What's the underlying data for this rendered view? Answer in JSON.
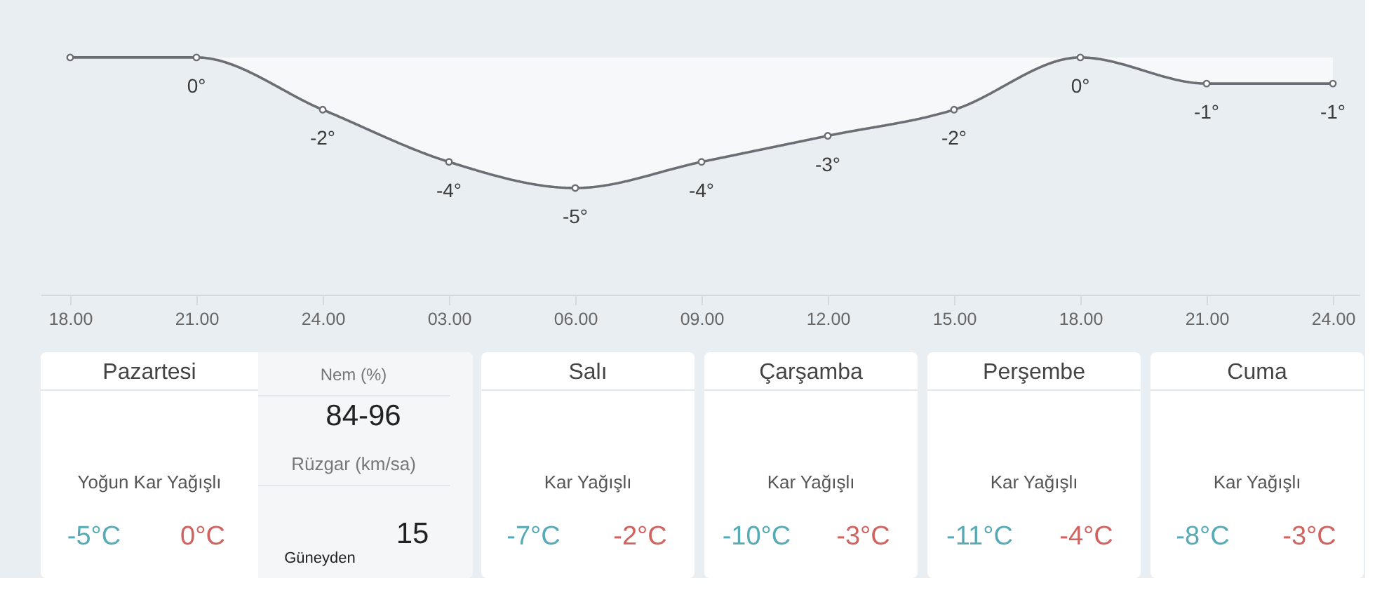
{
  "chart_data": [
    {
      "type": "area",
      "categories": [
        "18.00",
        "21.00",
        "24.00",
        "03.00",
        "06.00",
        "09.00",
        "12.00",
        "15.00",
        "18.00",
        "21.00",
        "24.00"
      ],
      "values": [
        0,
        0,
        -2,
        -4,
        -5,
        -4,
        -3,
        -2,
        0,
        -1,
        -1
      ],
      "value_labels": [
        null,
        "0°",
        "-2°",
        "-4°",
        "-5°",
        "-4°",
        "-3°",
        "-2°",
        "0°",
        "-1°",
        "-1°"
      ],
      "color": "#6b6e75",
      "marker": "circle",
      "tick_labels": "x"
    },
    {
      "type": "other",
      "title": "Pazartesi",
      "annotations": [
        "Yoğun Kar Yağışlı",
        "-5°C",
        "0°C",
        "Nem (%)",
        "84-96",
        "Rüzgar (km/sa)",
        "15",
        "Güneyden"
      ]
    },
    {
      "type": "other",
      "title": "Salı",
      "annotations": [
        "Kar Yağışlı",
        "-7°C",
        "-2°C"
      ]
    },
    {
      "type": "other",
      "title": "Çarşamba",
      "annotations": [
        "Kar Yağışlı",
        "-10°C",
        "-3°C"
      ]
    },
    {
      "type": "other",
      "title": "Perşembe",
      "annotations": [
        "Kar Yağışlı",
        "-11°C",
        "-4°C"
      ]
    },
    {
      "type": "other",
      "title": "Cuma",
      "annotations": [
        "Kar Yağışlı",
        "-8°C",
        "-3°C"
      ]
    }
  ]
}
